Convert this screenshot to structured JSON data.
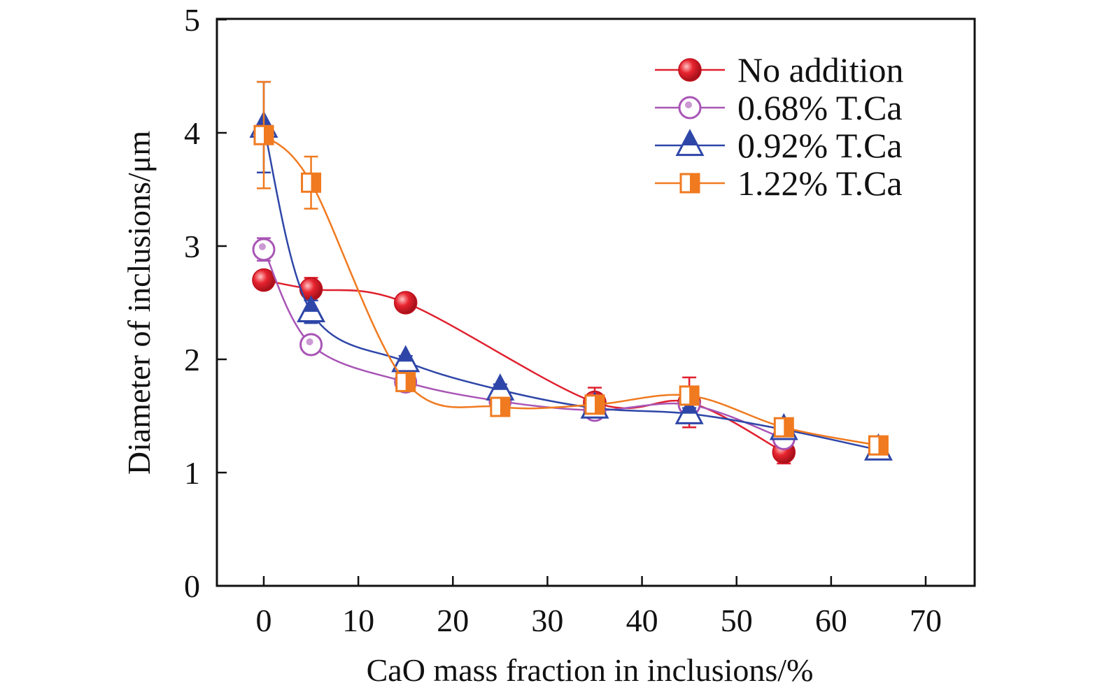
{
  "chart_data": {
    "type": "line",
    "title": "",
    "xlabel": "CaO mass fraction in inclusions/%",
    "ylabel": "Diameter of inclusions/μm",
    "xlim": [
      -5,
      75
    ],
    "ylim": [
      0,
      5
    ],
    "xticks": [
      0,
      10,
      20,
      30,
      40,
      50,
      60,
      70
    ],
    "yticks": [
      0,
      1,
      2,
      3,
      4,
      5
    ],
    "grid": false,
    "legend_position": "top-right",
    "series": [
      {
        "name": "No addition",
        "color": "#e0202e",
        "marker": "filled-circle",
        "x": [
          0,
          5,
          15,
          35,
          45,
          55
        ],
        "y": [
          2.7,
          2.62,
          2.5,
          1.62,
          1.62,
          1.18
        ],
        "err": [
          0.0,
          0.1,
          0.0,
          0.13,
          0.22,
          0.1
        ]
      },
      {
        "name": "0.68% T.Ca",
        "color": "#a855b5",
        "marker": "open-circle",
        "x": [
          0,
          5,
          15,
          25,
          35,
          45,
          55
        ],
        "y": [
          2.97,
          2.13,
          1.8,
          1.63,
          1.55,
          1.6,
          1.3
        ],
        "err": [
          0.1,
          0.0,
          0.05,
          0.05,
          0.05,
          0.05,
          0.05
        ]
      },
      {
        "name": "0.92% T.Ca",
        "color": "#2e46a8",
        "marker": "half-triangle",
        "x": [
          0,
          5,
          15,
          25,
          35,
          45,
          55,
          65
        ],
        "y": [
          4.05,
          2.42,
          1.98,
          1.73,
          1.57,
          1.52,
          1.38,
          1.2
        ],
        "err": [
          0.4,
          0.1,
          0.05,
          0.05,
          0.05,
          0.05,
          0.05,
          0.03
        ]
      },
      {
        "name": "1.22% T.Ca",
        "color": "#f07a1f",
        "marker": "half-square",
        "x": [
          0,
          5,
          15,
          25,
          35,
          45,
          55,
          65
        ],
        "y": [
          3.98,
          3.56,
          1.8,
          1.58,
          1.6,
          1.68,
          1.4,
          1.24
        ],
        "err": [
          0.47,
          0.23,
          0.05,
          0.08,
          0.05,
          0.05,
          0.05,
          0.03
        ]
      }
    ]
  }
}
